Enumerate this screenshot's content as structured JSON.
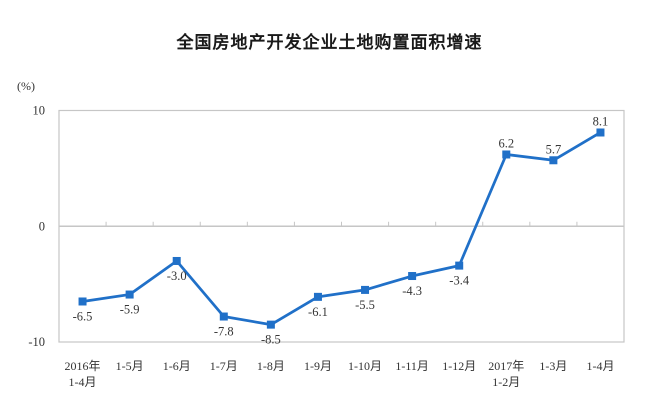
{
  "chart_data": {
    "type": "line",
    "title": "全国房地产开发企业土地购置面积增速",
    "ylabel": "(%)",
    "categories": [
      "2016年\n1-4月",
      "1-5月",
      "1-6月",
      "1-7月",
      "1-8月",
      "1-9月",
      "1-10月",
      "1-11月",
      "1-12月",
      "2017年\n1-2月",
      "1-3月",
      "1-4月"
    ],
    "values": [
      -6.5,
      -5.9,
      -3.0,
      -7.8,
      -8.5,
      -6.1,
      -5.5,
      -4.3,
      -3.4,
      6.2,
      5.7,
      8.1
    ],
    "data_labels": [
      "-6.5",
      "-5.9",
      "-3.0",
      "-7.8",
      "-8.5",
      "-6.1",
      "-5.5",
      "-4.3",
      "-3.4",
      "6.2",
      "5.7",
      "8.1"
    ],
    "yticks": [
      10,
      0,
      -10
    ],
    "ylim": [
      -10,
      10
    ],
    "grid": false,
    "legend": null,
    "marker": "square",
    "colors": {
      "line": "#2070C8",
      "axis": "#C6C6C6",
      "tick_text": "#333333",
      "label_text": "#363636",
      "title_text": "#1a1a1a",
      "background": "#ffffff"
    }
  }
}
